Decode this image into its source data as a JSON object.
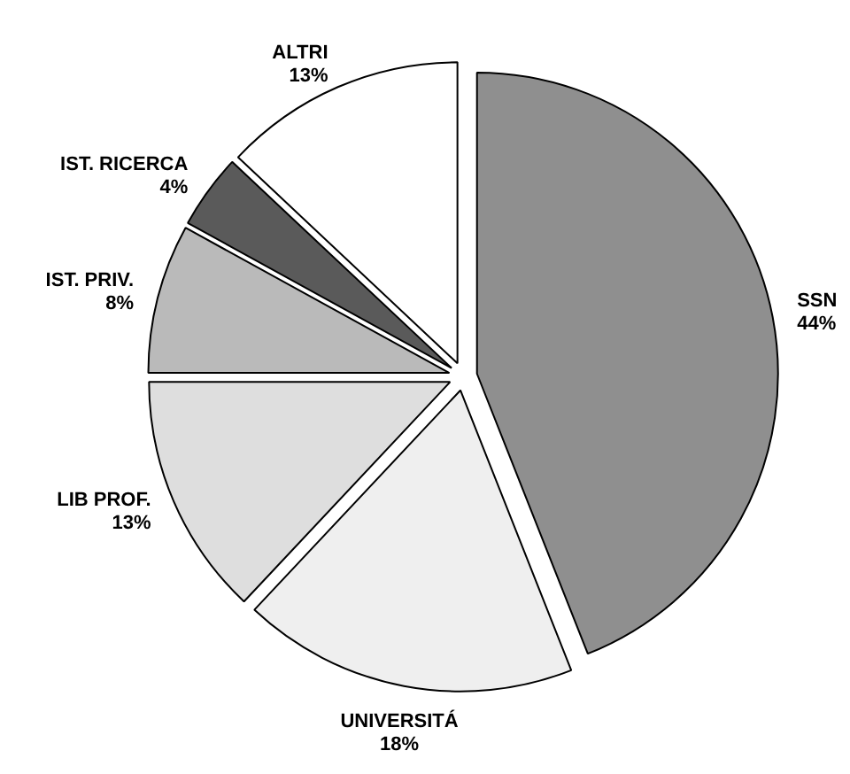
{
  "chart_data": {
    "type": "pie",
    "categories": [
      "SSN",
      "UNIVERSITÁ",
      "LIB PROF.",
      "IST. PRIV.",
      "IST. RICERCA",
      "ALTRI"
    ],
    "values": [
      44,
      18,
      13,
      8,
      4,
      13
    ],
    "value_labels": [
      "44%",
      "18%",
      "13%",
      "8%",
      "4%",
      "13%"
    ],
    "colors": [
      "#8f8f8f",
      "#efefef",
      "#dedede",
      "#bababa",
      "#5a5a5a",
      "#ffffff"
    ]
  }
}
